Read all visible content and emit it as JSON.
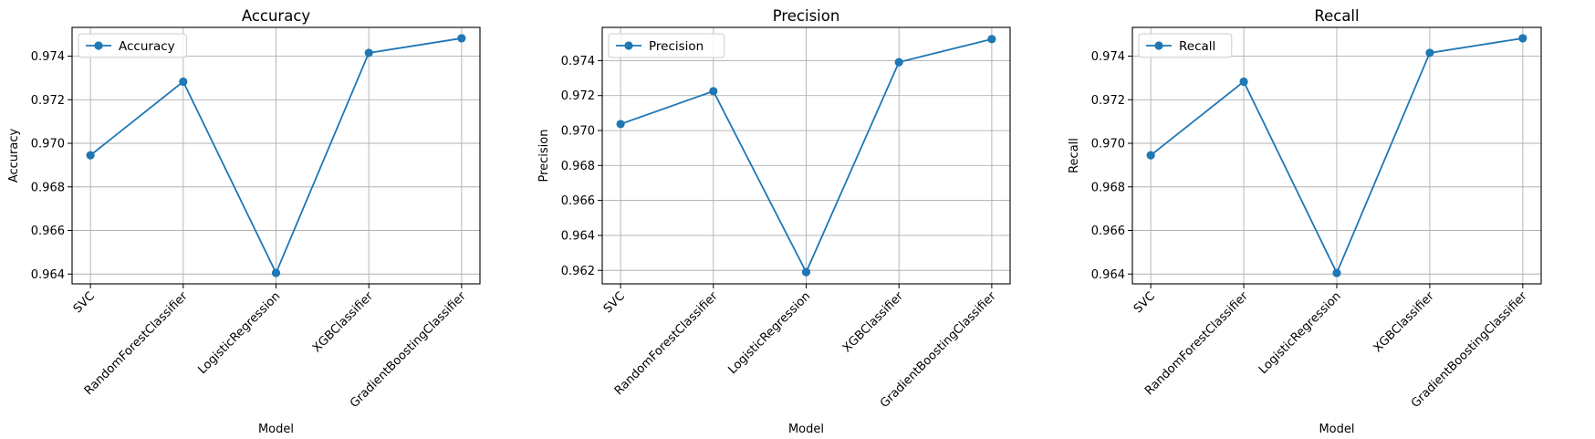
{
  "line_color": "#1f77b4",
  "grid_color": "#b0b0b0",
  "chart_data": [
    {
      "type": "line",
      "title": "Accuracy",
      "xlabel": "Model",
      "ylabel": "Accuracy",
      "categories": [
        "SVC",
        "RandomForestClassifier",
        "LogisticRegression",
        "XGBClassifier",
        "GradientBoostingClassifier"
      ],
      "series": [
        {
          "name": "Accuracy",
          "values": [
            0.96945,
            0.97283,
            0.96405,
            0.97415,
            0.97482
          ]
        }
      ],
      "ylim": [
        0.96355,
        0.97532
      ],
      "yticks": [
        0.964,
        0.966,
        0.968,
        0.97,
        0.972,
        0.974
      ],
      "ytick_labels": [
        "0.964",
        "0.966",
        "0.968",
        "0.970",
        "0.972",
        "0.974"
      ],
      "grid": true,
      "legend": "upper-left"
    },
    {
      "type": "line",
      "title": "Precision",
      "xlabel": "Model",
      "ylabel": "Precision",
      "categories": [
        "SVC",
        "RandomForestClassifier",
        "LogisticRegression",
        "XGBClassifier",
        "GradientBoostingClassifier"
      ],
      "series": [
        {
          "name": "Precision",
          "values": [
            0.97037,
            0.97225,
            0.9619,
            0.97391,
            0.97523
          ]
        }
      ],
      "ylim": [
        0.96123,
        0.9759
      ],
      "yticks": [
        0.962,
        0.964,
        0.966,
        0.968,
        0.97,
        0.972,
        0.974
      ],
      "ytick_labels": [
        "0.962",
        "0.964",
        "0.966",
        "0.968",
        "0.970",
        "0.972",
        "0.974"
      ],
      "grid": true,
      "legend": "upper-left"
    },
    {
      "type": "line",
      "title": "Recall",
      "xlabel": "Model",
      "ylabel": "Recall",
      "categories": [
        "SVC",
        "RandomForestClassifier",
        "LogisticRegression",
        "XGBClassifier",
        "GradientBoostingClassifier"
      ],
      "series": [
        {
          "name": "Recall",
          "values": [
            0.96945,
            0.97283,
            0.96405,
            0.97415,
            0.97482
          ]
        }
      ],
      "ylim": [
        0.96355,
        0.97532
      ],
      "yticks": [
        0.964,
        0.966,
        0.968,
        0.97,
        0.972,
        0.974
      ],
      "ytick_labels": [
        "0.964",
        "0.966",
        "0.968",
        "0.970",
        "0.972",
        "0.974"
      ],
      "grid": true,
      "legend": "upper-left"
    }
  ]
}
